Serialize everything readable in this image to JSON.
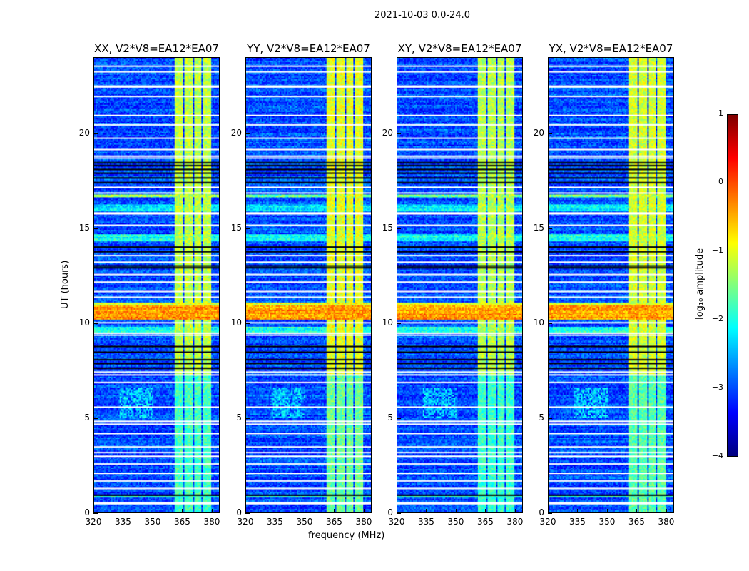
{
  "chart_data": {
    "type": "heatmap",
    "title": "2021-10-03 0.0-24.0",
    "xlabel": "frequency (MHz)",
    "ylabel": "UT (hours)",
    "xlim": [
      320,
      384
    ],
    "ylim": [
      0,
      24
    ],
    "xticks": [
      320,
      335,
      350,
      365,
      380
    ],
    "yticks": [
      0,
      5,
      10,
      15,
      20
    ],
    "panels": [
      {
        "title": "XX, V2*V8=EA12*EA07",
        "rfi_gain": 0
      },
      {
        "title": "YY, V2*V8=EA12*EA07",
        "rfi_gain": 0.2
      },
      {
        "title": "XY, V2*V8=EA12*EA07",
        "rfi_gain": -0.05
      },
      {
        "title": "YX, V2*V8=EA12*EA07",
        "rfi_gain": 0.1
      }
    ],
    "colorbar": {
      "label": "log₁₀ amplitude",
      "range": [
        -4,
        1
      ],
      "ticks": [
        "1",
        "0",
        "−1",
        "−2",
        "−3",
        "−4"
      ],
      "colormap": "jet"
    },
    "background_level": -3.0,
    "rfi_channels_mhz": [
      [
        361,
        365
      ],
      [
        366,
        370
      ],
      [
        371,
        374.5
      ],
      [
        375.5,
        379.5
      ]
    ],
    "rfi_level_upper": -1.2,
    "rfi_level_lower": -1.8,
    "rfi_transition_hour": 7.3,
    "bands": [
      {
        "hours": [
          10.2,
          10.95
        ],
        "level": -0.4
      },
      {
        "hours": [
          10.95,
          11.1
        ],
        "level": -1.0
      },
      {
        "hours": [
          9.55,
          9.85
        ],
        "level": -2.0
      },
      {
        "hours": [
          14.35,
          14.75
        ],
        "level": -2.1
      },
      {
        "hours": [
          15.95,
          16.3
        ],
        "level": -2.2
      },
      {
        "hours": [
          16.7,
          16.8
        ],
        "level": -1.5
      },
      {
        "hours": [
          0.8,
          0.9
        ],
        "level": -1.8
      }
    ],
    "blob": {
      "hours": [
        5.0,
        6.6
      ],
      "mhz": [
        333,
        350
      ],
      "level": -2.3
    },
    "dark_rows_hours": [
      0.95,
      7.65,
      7.9,
      8.1,
      8.5,
      8.8,
      12.95,
      13.05,
      13.8,
      14.05,
      17.45,
      17.7,
      17.95,
      18.15,
      18.35,
      18.5
    ],
    "flagged_rows_hours": [
      0.5,
      0.55,
      1.3,
      1.7,
      2.1,
      2.6,
      3.0,
      3.2,
      3.5,
      4.2,
      4.7,
      4.85,
      5.6,
      6.9,
      7.3,
      7.45,
      9.4,
      9.5,
      10.05,
      11.4,
      11.7,
      12.2,
      12.6,
      13.25,
      13.6,
      15.2,
      15.8,
      15.85,
      16.9,
      17.2,
      18.75,
      18.85,
      19.2,
      19.8,
      20.5,
      21.0,
      22.0,
      22.5,
      22.55,
      23.3,
      23.6
    ]
  }
}
